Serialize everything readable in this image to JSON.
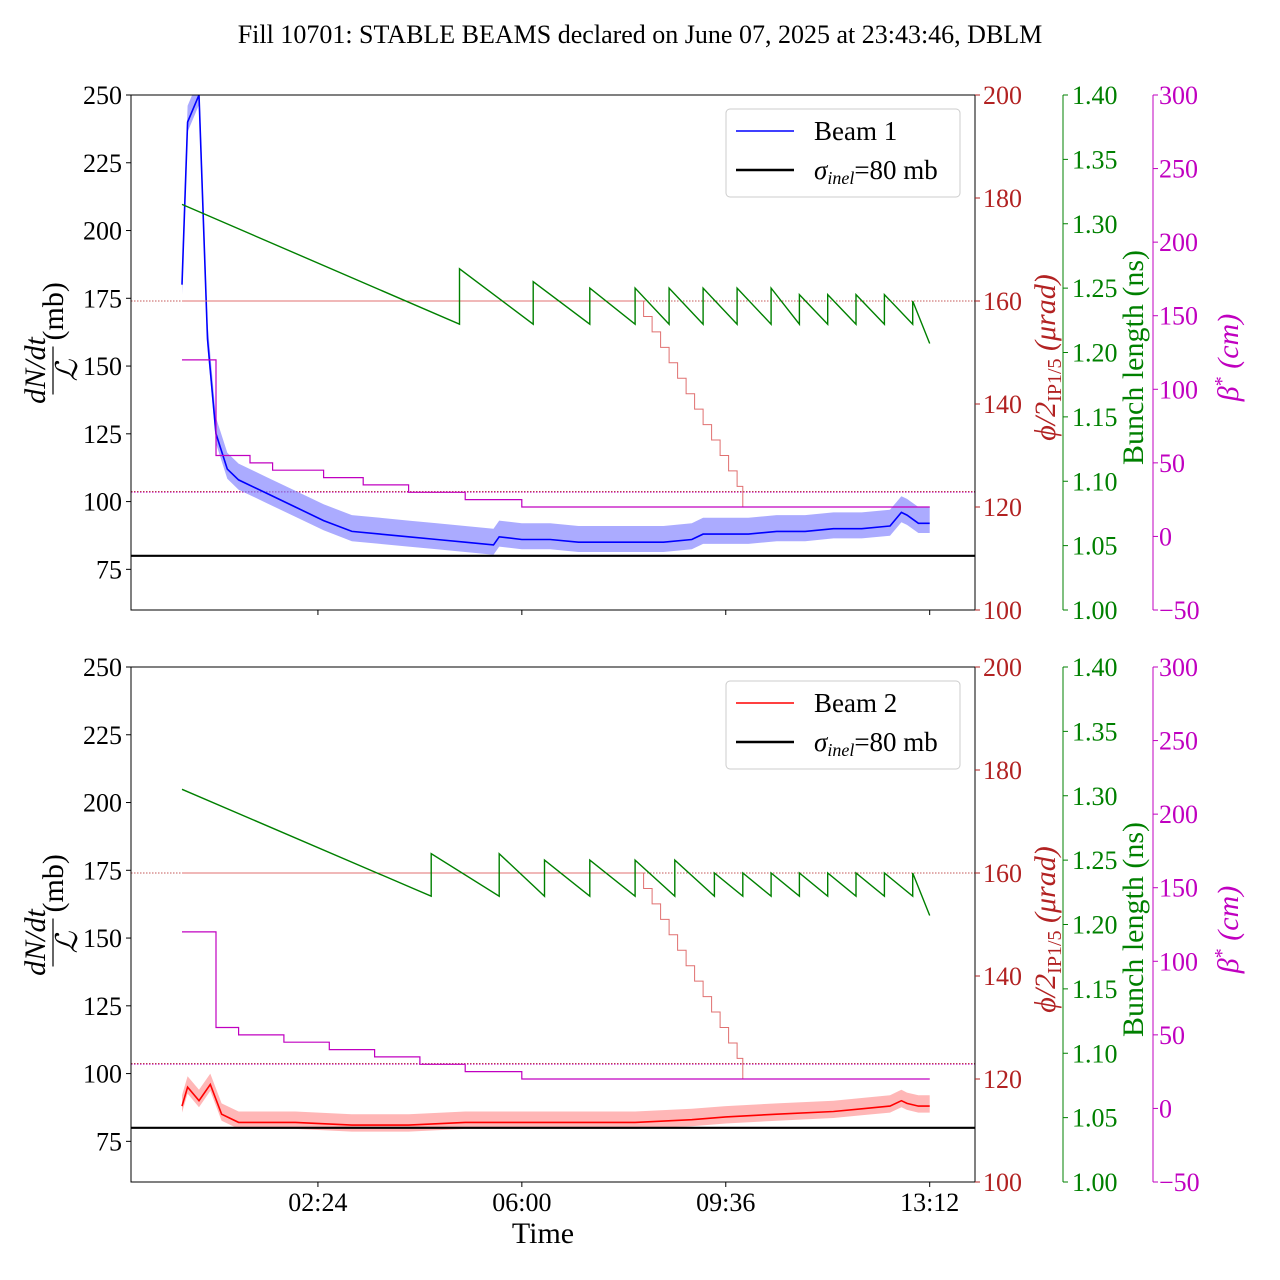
{
  "chart_data": {
    "type": "line",
    "title": "Fill 10701: STABLE BEAMS declared on June 07, 2025 at 23:43:46, DBLM",
    "xlabel": "Time",
    "xtick_labels": [
      "02:24",
      "06:00",
      "09:36",
      "13:12"
    ],
    "xtick_hours": [
      2.4,
      6.0,
      9.6,
      13.2
    ],
    "xlim_hours": [
      -0.9,
      14.0
    ],
    "axes": {
      "left": {
        "label_num": "dN/dt",
        "label_den": "ℒ",
        "label_unit": "(mb)",
        "ylim": [
          60,
          250
        ],
        "ticks": [
          75,
          100,
          125,
          150,
          175,
          200,
          225,
          250
        ],
        "color": "#000000"
      },
      "right1": {
        "label": "ϕ/2",
        "label_sub": "IP1/5",
        "label_unit": " (μrad)",
        "ylim": [
          100,
          200
        ],
        "ticks": [
          100,
          120,
          140,
          160,
          180,
          200
        ],
        "color": "#b22222"
      },
      "right2": {
        "label": "Bunch length (ns)",
        "ylim": [
          1.0,
          1.4
        ],
        "ticks": [
          "1.00",
          "1.05",
          "1.10",
          "1.15",
          "1.20",
          "1.25",
          "1.30",
          "1.35",
          "1.40"
        ],
        "color": "#008000"
      },
      "right3": {
        "label": "β",
        "label_sup": "*",
        "label_unit": " (cm)",
        "ylim": [
          -50,
          300
        ],
        "ticks": [
          -50,
          0,
          50,
          100,
          150,
          200,
          250,
          300
        ],
        "color": "#c000c0"
      }
    },
    "sigma_inel_mb": 80,
    "panels": [
      {
        "beam": "Beam 1",
        "color": "#0000ff",
        "band_color": "#8888ff",
        "legend": [
          {
            "label": "Beam 1",
            "style": "blue-line"
          },
          {
            "label": "σ_inel=80 mb",
            "sigma": "σ",
            "sub": "inel",
            "rest": "=80 mb",
            "style": "black-line"
          }
        ],
        "xsection_points": [
          [
            0.0,
            180
          ],
          [
            0.1,
            240
          ],
          [
            0.3,
            250
          ],
          [
            0.45,
            160
          ],
          [
            0.6,
            125
          ],
          [
            0.8,
            112
          ],
          [
            1.0,
            108
          ],
          [
            1.5,
            103
          ],
          [
            2.0,
            98
          ],
          [
            2.5,
            93
          ],
          [
            3.0,
            89
          ],
          [
            3.5,
            88
          ],
          [
            4.0,
            87
          ],
          [
            4.5,
            86
          ],
          [
            5.0,
            85
          ],
          [
            5.5,
            84
          ],
          [
            5.6,
            87
          ],
          [
            6.0,
            86
          ],
          [
            6.5,
            86
          ],
          [
            7.0,
            85
          ],
          [
            7.5,
            85
          ],
          [
            8.0,
            85
          ],
          [
            8.5,
            85
          ],
          [
            9.0,
            86
          ],
          [
            9.2,
            88
          ],
          [
            9.5,
            88
          ],
          [
            10.0,
            88
          ],
          [
            10.5,
            89
          ],
          [
            11.0,
            89
          ],
          [
            11.5,
            90
          ],
          [
            12.0,
            90
          ],
          [
            12.5,
            91
          ],
          [
            12.7,
            96
          ],
          [
            12.8,
            95
          ],
          [
            13.0,
            92
          ],
          [
            13.2,
            92
          ]
        ],
        "band_halfwidth_mb": 6,
        "crossing_angle_urad": [
          [
            0.0,
            160
          ],
          [
            8.0,
            160
          ],
          [
            8.15,
            157
          ],
          [
            8.3,
            154
          ],
          [
            8.45,
            151
          ],
          [
            8.6,
            148
          ],
          [
            8.75,
            145
          ],
          [
            8.9,
            142
          ],
          [
            9.05,
            139
          ],
          [
            9.2,
            136
          ],
          [
            9.35,
            133
          ],
          [
            9.5,
            130
          ],
          [
            9.65,
            127
          ],
          [
            9.8,
            124
          ],
          [
            9.9,
            120
          ],
          [
            13.2,
            120
          ]
        ],
        "crossing_angle_dotted_urad": [
          160,
          123
        ],
        "bunch_length_ns": {
          "start": 1.315,
          "sawtooth_hours": [
            4.9,
            6.2,
            7.2,
            8.0,
            8.6,
            9.2,
            9.8,
            10.4,
            10.9,
            11.4,
            11.9,
            12.4,
            12.9
          ],
          "peak_after_ns": [
            1.265,
            1.255,
            1.25,
            1.25,
            1.25,
            1.25,
            1.25,
            1.25,
            1.245,
            1.245,
            1.245,
            1.245,
            1.24
          ],
          "trough_ns": 1.222,
          "end": 1.207
        },
        "beta_star_cm": [
          [
            0.0,
            120
          ],
          [
            0.5,
            120
          ],
          [
            0.6,
            55
          ],
          [
            1.2,
            50
          ],
          [
            1.6,
            45
          ],
          [
            2.5,
            40
          ],
          [
            3.2,
            35
          ],
          [
            4.0,
            30
          ],
          [
            5.0,
            25
          ],
          [
            6.0,
            20
          ],
          [
            13.2,
            20
          ]
        ]
      },
      {
        "beam": "Beam 2",
        "color": "#ff0000",
        "band_color": "#ff9999",
        "legend": [
          {
            "label": "Beam 2",
            "style": "red-line"
          },
          {
            "label": "σ_inel=80 mb",
            "sigma": "σ",
            "sub": "inel",
            "rest": "=80 mb",
            "style": "black-line"
          }
        ],
        "xsection_points": [
          [
            0.0,
            88
          ],
          [
            0.1,
            95
          ],
          [
            0.3,
            90
          ],
          [
            0.5,
            96
          ],
          [
            0.7,
            85
          ],
          [
            1.0,
            82
          ],
          [
            2.0,
            82
          ],
          [
            3.0,
            81
          ],
          [
            4.0,
            81
          ],
          [
            5.0,
            82
          ],
          [
            6.0,
            82
          ],
          [
            7.0,
            82
          ],
          [
            8.0,
            82
          ],
          [
            9.0,
            83
          ],
          [
            9.6,
            84
          ],
          [
            10.5,
            85
          ],
          [
            11.5,
            86
          ],
          [
            12.0,
            87
          ],
          [
            12.5,
            88
          ],
          [
            12.7,
            90
          ],
          [
            12.8,
            89
          ],
          [
            13.0,
            88
          ],
          [
            13.2,
            88
          ]
        ],
        "band_halfwidth_mb": 4,
        "crossing_angle_urad": [
          [
            0.0,
            160
          ],
          [
            8.0,
            160
          ],
          [
            8.15,
            157
          ],
          [
            8.3,
            154
          ],
          [
            8.45,
            151
          ],
          [
            8.6,
            148
          ],
          [
            8.75,
            145
          ],
          [
            8.9,
            142
          ],
          [
            9.05,
            139
          ],
          [
            9.2,
            136
          ],
          [
            9.35,
            133
          ],
          [
            9.5,
            130
          ],
          [
            9.65,
            127
          ],
          [
            9.8,
            124
          ],
          [
            9.9,
            120
          ],
          [
            13.2,
            120
          ]
        ],
        "crossing_angle_dotted_urad": [
          160,
          123
        ],
        "bunch_length_ns": {
          "start": 1.305,
          "sawtooth_hours": [
            4.4,
            5.6,
            6.4,
            7.2,
            8.0,
            8.7,
            9.4,
            9.9,
            10.4,
            10.9,
            11.4,
            11.9,
            12.4,
            12.9
          ],
          "peak_after_ns": [
            1.255,
            1.255,
            1.25,
            1.25,
            1.25,
            1.25,
            1.24,
            1.24,
            1.24,
            1.24,
            1.24,
            1.24,
            1.24,
            1.24
          ],
          "trough_ns": 1.222,
          "end": 1.207
        },
        "beta_star_cm": [
          [
            0.0,
            120
          ],
          [
            0.5,
            120
          ],
          [
            0.6,
            55
          ],
          [
            1.0,
            50
          ],
          [
            1.8,
            45
          ],
          [
            2.6,
            40
          ],
          [
            3.4,
            35
          ],
          [
            4.2,
            30
          ],
          [
            5.0,
            25
          ],
          [
            6.0,
            20
          ],
          [
            13.2,
            20
          ]
        ]
      }
    ]
  }
}
